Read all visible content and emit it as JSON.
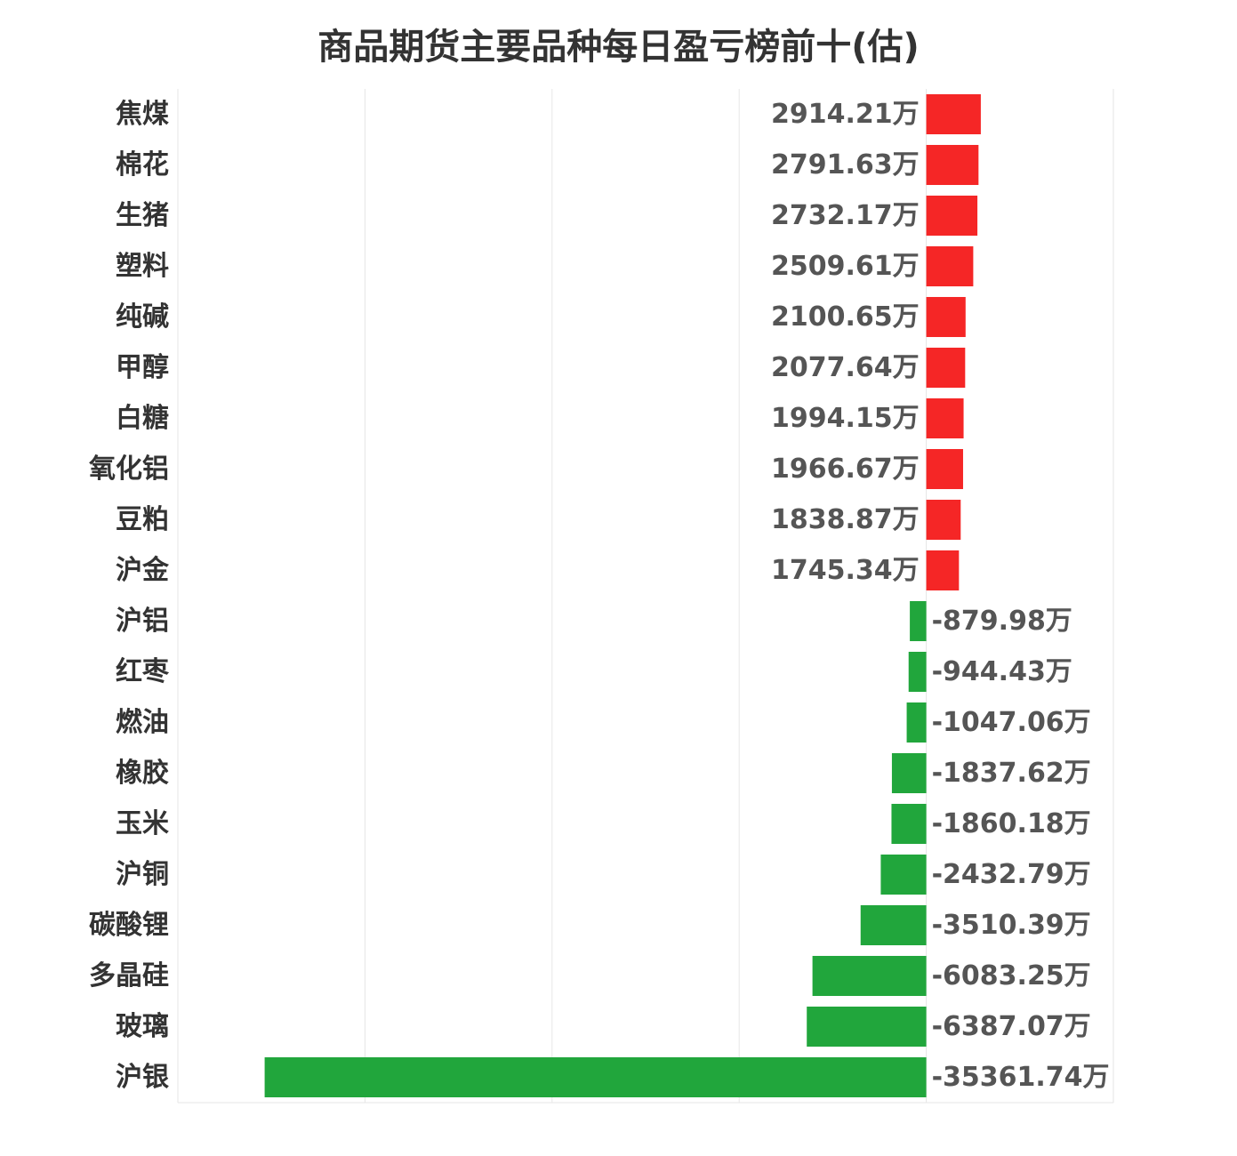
{
  "chart_data": {
    "type": "bar",
    "orientation": "horizontal",
    "title": "商品期货主要品种每日盈亏榜前十(估)",
    "unit": "万",
    "categories": [
      "焦煤",
      "棉花",
      "生猪",
      "塑料",
      "纯碱",
      "甲醇",
      "白糖",
      "氧化铝",
      "豆粕",
      "沪金",
      "沪铝",
      "红枣",
      "燃油",
      "橡胶",
      "玉米",
      "沪铜",
      "碳酸锂",
      "多晶硅",
      "玻璃",
      "沪银"
    ],
    "values": [
      2914.21,
      2791.63,
      2732.17,
      2509.61,
      2100.65,
      2077.64,
      1994.15,
      1966.67,
      1838.87,
      1745.34,
      -879.98,
      -944.43,
      -1047.06,
      -1837.62,
      -1860.18,
      -2432.79,
      -3510.39,
      -6083.25,
      -6387.07,
      -35361.74
    ],
    "value_labels": [
      "2914.21万",
      "2791.63万",
      "2732.17万",
      "2509.61万",
      "2100.65万",
      "2077.64万",
      "1994.15万",
      "1966.67万",
      "1838.87万",
      "1745.34万",
      "-879.98万",
      "-944.43万",
      "-1047.06万",
      "-1837.62万",
      "-1860.18万",
      "-2432.79万",
      "-3510.39万",
      "-6083.25万",
      "-6387.07万",
      "-35361.74万"
    ],
    "xlim": [
      -40000,
      10000
    ],
    "grid": true,
    "colors": {
      "positive": "#f52626",
      "negative": "#21a63c",
      "grid": "#e6e6e6"
    }
  }
}
